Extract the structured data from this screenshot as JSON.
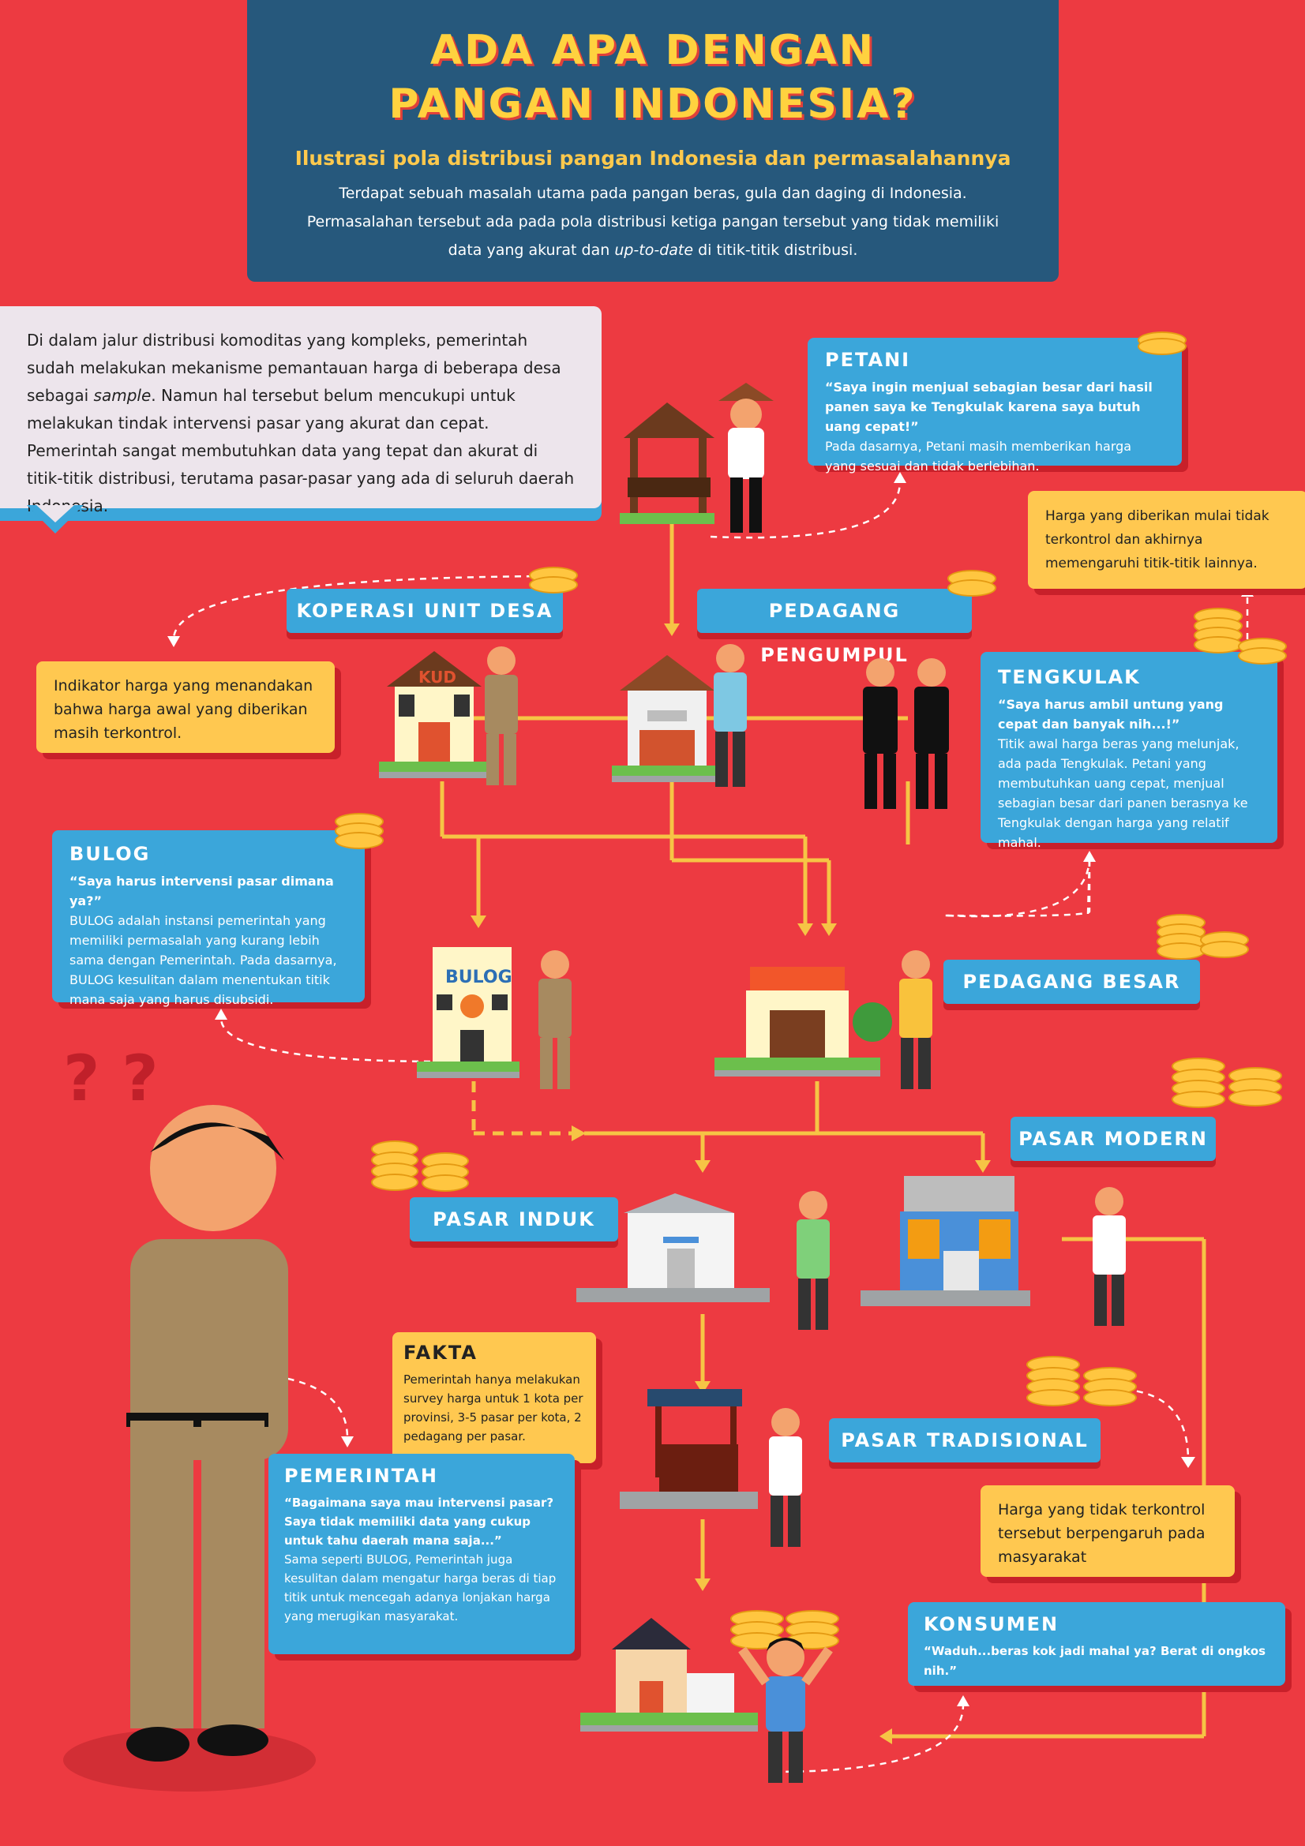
{
  "header": {
    "title_line1": "ADA APA DENGAN",
    "title_line2": "PANGAN INDONESIA?",
    "subtitle": "Ilustrasi pola distribusi pangan Indonesia dan permasalahannya",
    "desc_a": "Terdapat sebuah masalah utama pada pangan beras, gula dan daging di Indonesia. Permasalahan tersebut ada pada pola distribusi ketiga pangan tersebut yang tidak memiliki data yang akurat dan ",
    "desc_em": "up-to-date",
    "desc_b": " di titik-titik distribusi."
  },
  "intro": {
    "a": "Di dalam jalur distribusi komoditas yang kompleks, pemerintah sudah melakukan mekanisme pemantauan harga di beberapa desa sebagai ",
    "em": "sample",
    "b": ". Namun hal tersebut belum mencukupi untuk melakukan tindak intervensi pasar yang akurat dan cepat. Pemerintah sangat membutuhkan data yang tepat dan akurat di titik-titik distribusi, terutama pasar-pasar yang ada di seluruh daerah Indonesia."
  },
  "petani": {
    "title": "PETANI",
    "quote": "“Saya ingin menjual sebagian besar dari hasil panen saya ke Tengkulak karena saya butuh uang cepat!”",
    "body": "Pada dasarnya, Petani masih memberikan harga yang sesuai dan tidak berlebihan."
  },
  "note_uncontrolled": "Harga yang diberikan mulai tidak terkontrol dan akhirnya memengaruhi titik-titik lainnya.",
  "labels": {
    "kud": "KOPERASI UNIT DESA",
    "pengumpul": "PEDAGANG PENGUMPUL",
    "pedagang_besar": "PEDAGANG BESAR",
    "pasar_modern": "PASAR MODERN",
    "pasar_induk": "PASAR INDUK",
    "pasar_tradisional": "PASAR TRADISIONAL"
  },
  "note_controlled": "Indikator harga yang menandakan bahwa harga awal yang diberikan masih terkontrol.",
  "tengkulak": {
    "title": "TENGKULAK",
    "quote": "“Saya harus ambil untung yang cepat dan banyak nih...!”",
    "body": "Titik awal harga beras yang melunjak, ada pada Tengkulak. Petani yang membutuhkan uang cepat, menjual sebagian besar dari panen berasnya ke Tengkulak dengan harga yang relatif mahal."
  },
  "bulog": {
    "title": "BULOG",
    "quote": "“Saya harus intervensi pasar dimana ya?”",
    "body": "BULOG adalah instansi pemerintah yang memiliki permasalah yang kurang lebih sama dengan Pemerintah. Pada dasarnya, BULOG kesulitan dalam menentukan titik mana saja yang harus disubsidi."
  },
  "buildings": {
    "kud_sign": "KUD",
    "bulog_sign": "BULOG"
  },
  "fakta": {
    "title": "FAKTA",
    "body": "Pemerintah hanya melakukan survey harga untuk 1 kota per provinsi, 3-5 pasar per kota, 2 pedagang per pasar."
  },
  "pemerintah": {
    "title": "PEMERINTAH",
    "quote": "“Bagaimana saya mau intervensi pasar? Saya tidak memiliki data yang cukup untuk tahu daerah mana saja...”",
    "body": "Sama seperti BULOG, Pemerintah juga kesulitan dalam mengatur harga beras di tiap titik untuk mencegah adanya lonjakan harga yang merugikan masyarakat."
  },
  "note_society": "Harga yang tidak terkontrol tersebut berpengaruh pada masyarakat",
  "konsumen": {
    "title": "KONSUMEN",
    "quote": "“Waduh...beras kok jadi mahal ya? Berat di ongkos nih.”"
  },
  "question_marks": "? ?",
  "colors": {
    "background": "#ED3A41",
    "header": "#26587C",
    "blue": "#3BA6DA",
    "yellow": "#FFC850",
    "line": "#F6C445",
    "title": "#FFD23F"
  }
}
